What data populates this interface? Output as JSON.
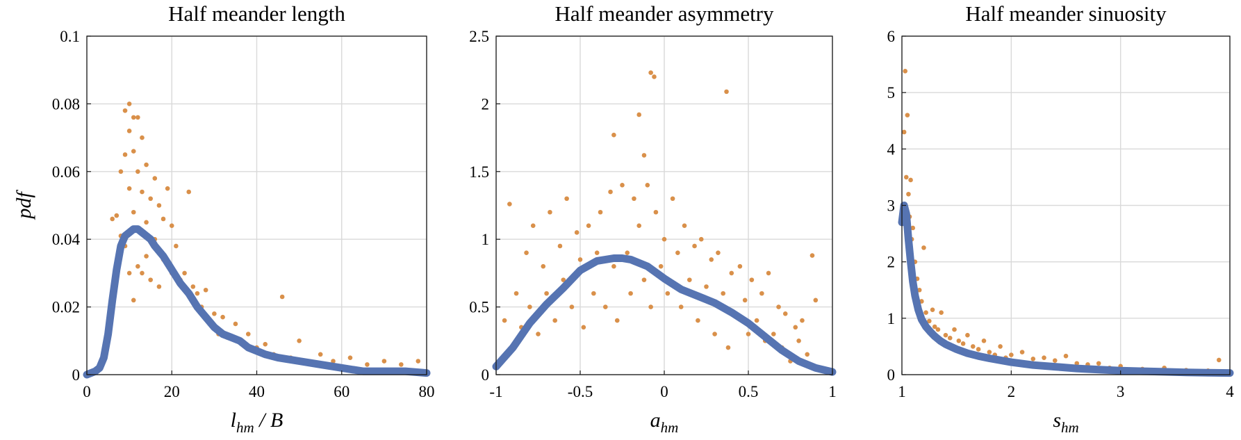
{
  "figure": {
    "point_color": "#D9904A",
    "curve_color": "#5674B2"
  },
  "chart_data": [
    {
      "type": "scatter",
      "title": "Half meander length",
      "ylabel": "pdf",
      "xlabel": "l",
      "xlabel_sub": "hm",
      "xlabel_suffix": " / B",
      "xlim": [
        0,
        80
      ],
      "ylim": [
        0,
        0.1
      ],
      "xticks": [
        0,
        20,
        40,
        60,
        80
      ],
      "yticks": [
        0,
        0.02,
        0.04,
        0.06,
        0.08,
        0.1
      ],
      "xtick_labels": [
        "0",
        "20",
        "40",
        "60",
        "80"
      ],
      "ytick_labels": [
        "0",
        "0.02",
        "0.04",
        "0.06",
        "0.08",
        "0.1"
      ],
      "grid": true,
      "series": [
        {
          "kind": "scatter",
          "x": [
            6,
            7,
            7,
            8,
            8,
            9,
            9,
            9,
            10,
            10,
            10,
            10,
            11,
            11,
            11,
            11,
            12,
            12,
            12,
            12,
            13,
            13,
            13,
            14,
            14,
            14,
            15,
            15,
            16,
            16,
            17,
            17,
            18,
            18,
            19,
            20,
            20,
            21,
            22,
            23,
            24,
            25,
            26,
            27,
            28,
            29,
            30,
            31,
            32,
            33,
            35,
            36,
            38,
            40,
            42,
            44,
            46,
            48,
            50,
            52,
            55,
            58,
            62,
            66,
            70,
            74,
            78
          ],
          "y": [
            0.046,
            0.03,
            0.047,
            0.06,
            0.041,
            0.078,
            0.065,
            0.038,
            0.08,
            0.072,
            0.055,
            0.03,
            0.076,
            0.066,
            0.048,
            0.022,
            0.076,
            0.06,
            0.043,
            0.032,
            0.07,
            0.054,
            0.03,
            0.062,
            0.045,
            0.035,
            0.052,
            0.028,
            0.058,
            0.04,
            0.05,
            0.026,
            0.046,
            0.034,
            0.055,
            0.044,
            0.03,
            0.038,
            0.028,
            0.03,
            0.054,
            0.026,
            0.024,
            0.02,
            0.025,
            0.015,
            0.018,
            0.012,
            0.017,
            0.011,
            0.015,
            0.01,
            0.012,
            0.008,
            0.009,
            0.006,
            0.023,
            0.005,
            0.01,
            0.004,
            0.006,
            0.004,
            0.005,
            0.003,
            0.004,
            0.003,
            0.004
          ]
        },
        {
          "kind": "line",
          "x": [
            0,
            2,
            3,
            4,
            5,
            6,
            7,
            8,
            9,
            10,
            11,
            12,
            13,
            14,
            15,
            16,
            18,
            20,
            22,
            24,
            26,
            28,
            30,
            32,
            34,
            36,
            38,
            40,
            42,
            45,
            50,
            55,
            60,
            65,
            70,
            75,
            80
          ],
          "y": [
            0.0,
            0.001,
            0.002,
            0.005,
            0.012,
            0.022,
            0.031,
            0.038,
            0.041,
            0.042,
            0.043,
            0.043,
            0.042,
            0.041,
            0.04,
            0.038,
            0.035,
            0.031,
            0.027,
            0.024,
            0.02,
            0.017,
            0.014,
            0.012,
            0.011,
            0.01,
            0.008,
            0.007,
            0.006,
            0.005,
            0.004,
            0.003,
            0.002,
            0.001,
            0.001,
            0.001,
            0.0005
          ]
        }
      ]
    },
    {
      "type": "scatter",
      "title": "Half meander asymmetry",
      "ylabel": "",
      "xlabel": "a",
      "xlabel_sub": "hm",
      "xlabel_suffix": "",
      "xlim": [
        -1,
        1
      ],
      "ylim": [
        0,
        2.5
      ],
      "xticks": [
        -1,
        -0.5,
        0,
        0.5,
        1
      ],
      "yticks": [
        0,
        0.5,
        1,
        1.5,
        2,
        2.5
      ],
      "xtick_labels": [
        "-1",
        "-0.5",
        "0",
        "0.5",
        "1"
      ],
      "ytick_labels": [
        "0",
        "0.5",
        "1",
        "1.5",
        "2",
        "2.5"
      ],
      "grid": true,
      "series": [
        {
          "kind": "scatter",
          "x": [
            -0.95,
            -0.92,
            -0.9,
            -0.88,
            -0.85,
            -0.82,
            -0.8,
            -0.78,
            -0.75,
            -0.72,
            -0.7,
            -0.68,
            -0.65,
            -0.62,
            -0.6,
            -0.58,
            -0.55,
            -0.52,
            -0.5,
            -0.48,
            -0.45,
            -0.42,
            -0.4,
            -0.38,
            -0.35,
            -0.32,
            -0.3,
            -0.28,
            -0.25,
            -0.22,
            -0.2,
            -0.18,
            -0.15,
            -0.12,
            -0.1,
            -0.08,
            -0.05,
            -0.02,
            0.0,
            0.02,
            0.05,
            0.08,
            0.1,
            0.12,
            0.15,
            0.18,
            0.2,
            0.22,
            0.25,
            0.28,
            0.3,
            0.32,
            0.35,
            0.38,
            0.4,
            0.42,
            0.45,
            0.48,
            0.5,
            0.52,
            0.55,
            0.58,
            0.6,
            0.62,
            0.65,
            0.68,
            0.7,
            0.72,
            0.75,
            0.78,
            0.8,
            0.82,
            0.85,
            0.88,
            0.9,
            -0.3,
            -0.15,
            -0.08,
            -0.06,
            -0.12,
            0.37
          ],
          "y": [
            0.4,
            1.26,
            0.2,
            0.6,
            0.35,
            0.9,
            0.5,
            1.1,
            0.3,
            0.8,
            0.6,
            1.2,
            0.4,
            0.95,
            0.7,
            1.3,
            0.5,
            1.05,
            0.85,
            0.35,
            1.1,
            0.6,
            0.9,
            1.2,
            0.5,
            1.35,
            0.8,
            0.4,
            1.4,
            0.9,
            0.6,
            1.3,
            1.1,
            0.7,
            1.4,
            0.5,
            1.2,
            0.8,
            1.0,
            0.6,
            1.3,
            0.9,
            0.5,
            1.1,
            0.7,
            0.95,
            0.4,
            1.0,
            0.65,
            0.85,
            0.3,
            0.9,
            0.6,
            0.2,
            0.75,
            0.45,
            0.8,
            0.55,
            0.3,
            0.7,
            0.4,
            0.6,
            0.25,
            0.75,
            0.3,
            0.5,
            0.2,
            0.45,
            0.1,
            0.35,
            0.25,
            0.4,
            0.15,
            0.88,
            0.55,
            1.77,
            1.92,
            2.23,
            2.2,
            1.62,
            2.09
          ]
        },
        {
          "kind": "line",
          "x": [
            -1,
            -0.9,
            -0.8,
            -0.7,
            -0.6,
            -0.5,
            -0.4,
            -0.3,
            -0.25,
            -0.2,
            -0.1,
            0.0,
            0.1,
            0.2,
            0.3,
            0.4,
            0.5,
            0.6,
            0.7,
            0.8,
            0.9,
            1.0
          ],
          "y": [
            0.06,
            0.2,
            0.38,
            0.52,
            0.64,
            0.77,
            0.84,
            0.86,
            0.86,
            0.85,
            0.8,
            0.71,
            0.63,
            0.58,
            0.53,
            0.46,
            0.38,
            0.28,
            0.18,
            0.1,
            0.05,
            0.02
          ]
        }
      ]
    },
    {
      "type": "scatter",
      "title": "Half meander sinuosity",
      "ylabel": "",
      "xlabel": "s",
      "xlabel_sub": "hm",
      "xlabel_suffix": "",
      "xlim": [
        1,
        4
      ],
      "ylim": [
        0,
        6
      ],
      "xticks": [
        1,
        2,
        3,
        4
      ],
      "yticks": [
        0,
        1,
        2,
        3,
        4,
        5,
        6
      ],
      "xtick_labels": [
        "1",
        "2",
        "3",
        "4"
      ],
      "ytick_labels": [
        "0",
        "1",
        "2",
        "3",
        "4",
        "5",
        "6"
      ],
      "grid": true,
      "series": [
        {
          "kind": "scatter",
          "x": [
            1.02,
            1.03,
            1.04,
            1.05,
            1.06,
            1.07,
            1.08,
            1.09,
            1.1,
            1.12,
            1.14,
            1.16,
            1.18,
            1.2,
            1.22,
            1.25,
            1.28,
            1.3,
            1.33,
            1.36,
            1.4,
            1.44,
            1.48,
            1.52,
            1.56,
            1.6,
            1.65,
            1.7,
            1.75,
            1.8,
            1.85,
            1.9,
            1.95,
            2.0,
            2.1,
            2.2,
            2.3,
            2.4,
            2.5,
            2.6,
            2.7,
            2.8,
            2.9,
            3.0,
            3.2,
            3.4,
            3.6,
            3.8,
            3.9
          ],
          "y": [
            4.3,
            5.38,
            3.5,
            4.6,
            3.2,
            2.8,
            3.45,
            2.4,
            2.6,
            2.0,
            1.7,
            1.5,
            1.3,
            2.25,
            1.1,
            0.95,
            1.15,
            0.85,
            0.8,
            1.1,
            0.7,
            0.65,
            0.8,
            0.6,
            0.55,
            0.7,
            0.5,
            0.45,
            0.6,
            0.4,
            0.35,
            0.5,
            0.3,
            0.35,
            0.4,
            0.28,
            0.3,
            0.25,
            0.33,
            0.2,
            0.18,
            0.2,
            0.12,
            0.15,
            0.1,
            0.12,
            0.08,
            0.07,
            0.26
          ]
        },
        {
          "kind": "line",
          "x": [
            1.0,
            1.02,
            1.04,
            1.06,
            1.08,
            1.1,
            1.12,
            1.15,
            1.18,
            1.22,
            1.26,
            1.3,
            1.35,
            1.4,
            1.5,
            1.6,
            1.7,
            1.8,
            2.0,
            2.2,
            2.4,
            2.6,
            2.8,
            3.0,
            3.2,
            3.4,
            3.6,
            3.8,
            4.0
          ],
          "y": [
            2.7,
            3.0,
            2.85,
            2.4,
            2.0,
            1.65,
            1.4,
            1.15,
            0.98,
            0.85,
            0.76,
            0.68,
            0.6,
            0.54,
            0.45,
            0.38,
            0.33,
            0.29,
            0.22,
            0.17,
            0.14,
            0.11,
            0.09,
            0.07,
            0.06,
            0.05,
            0.04,
            0.035,
            0.03
          ]
        }
      ]
    }
  ]
}
